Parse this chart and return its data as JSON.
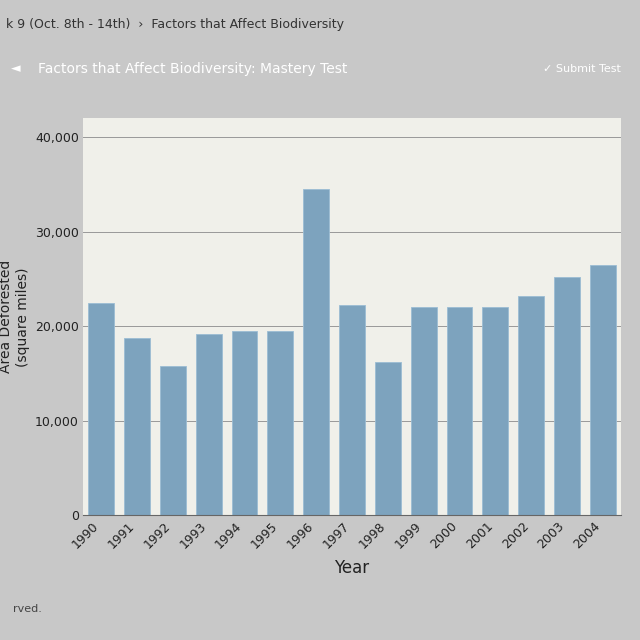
{
  "years": [
    "1990",
    "1991",
    "1992",
    "1993",
    "1994",
    "1995",
    "1996",
    "1997",
    "1998",
    "1999",
    "2000",
    "2001",
    "2002",
    "2003",
    "2004"
  ],
  "values": [
    22500,
    18800,
    15800,
    19200,
    19500,
    19500,
    34500,
    22200,
    16200,
    22000,
    22000,
    22000,
    23200,
    25200,
    26500
  ],
  "bar_color": "#7da3be",
  "bar_edge_color": "#9bbdd4",
  "xlabel": "Year",
  "ylabel": "Area Deforested\n(square miles)",
  "ylim": [
    0,
    42000
  ],
  "yticks": [
    0,
    10000,
    20000,
    30000,
    40000
  ],
  "page_bg_color": "#c8c8c8",
  "chart_area_bg_color": "#e8e8e2",
  "plot_bg_color": "#f0f0ea",
  "grid_color": "#999999",
  "xlabel_fontsize": 12,
  "ylabel_fontsize": 10,
  "tick_fontsize": 9,
  "title_bar_color": "#3a82c0",
  "title_bar_text": "Factors that Affect Biodiversity: Mastery Test",
  "header_text": "k 9 (Oct. 8th - 14th)  ›  Factors that Affect Biodiversity",
  "submit_text": "✓ Submit Test",
  "bottom_text": "rved."
}
